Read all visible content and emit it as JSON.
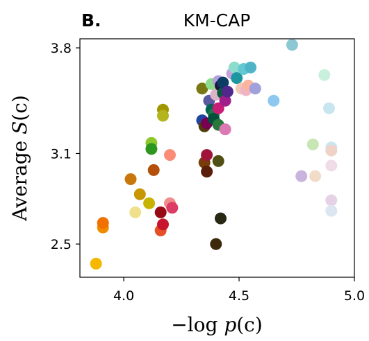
{
  "chart_data": {
    "type": "scatter",
    "panel_label": "B.",
    "title": "KM-CAP",
    "xlabel_prefix": "−log ",
    "xlabel_var": "p",
    "xlabel_suffix": "(c)",
    "ylabel_prefix": "Average ",
    "ylabel_var": "S",
    "ylabel_suffix": "(c)",
    "xlim": [
      3.81,
      5.0
    ],
    "ylim": [
      2.28,
      3.86
    ],
    "x_ticks": [
      4.0,
      4.5,
      5.0
    ],
    "x_tick_labels": [
      "4.0",
      "4.5",
      "5.0"
    ],
    "y_ticks": [
      2.5,
      3.1,
      3.8
    ],
    "y_tick_labels": [
      "2.5",
      "3.1",
      "3.8"
    ],
    "grid": false,
    "legend": "none",
    "points": [
      {
        "x": 3.88,
        "y": 2.37,
        "color": "#f5b700"
      },
      {
        "x": 3.91,
        "y": 2.61,
        "color": "#f08c00"
      },
      {
        "x": 3.91,
        "y": 2.64,
        "color": "#f07000"
      },
      {
        "x": 4.03,
        "y": 2.93,
        "color": "#c8780a"
      },
      {
        "x": 4.05,
        "y": 2.71,
        "color": "#f0e08c"
      },
      {
        "x": 4.07,
        "y": 2.83,
        "color": "#c89600"
      },
      {
        "x": 4.11,
        "y": 2.77,
        "color": "#c8b400"
      },
      {
        "x": 4.12,
        "y": 3.17,
        "color": "#8cc82d"
      },
      {
        "x": 4.12,
        "y": 3.13,
        "color": "#2d961e"
      },
      {
        "x": 4.13,
        "y": 2.99,
        "color": "#b4500a"
      },
      {
        "x": 4.16,
        "y": 2.71,
        "color": "#960a14"
      },
      {
        "x": 4.16,
        "y": 2.59,
        "color": "#e65028"
      },
      {
        "x": 4.17,
        "y": 2.63,
        "color": "#c8142d"
      },
      {
        "x": 4.17,
        "y": 3.39,
        "color": "#a09600"
      },
      {
        "x": 4.17,
        "y": 3.35,
        "color": "#b4b41e"
      },
      {
        "x": 4.2,
        "y": 3.09,
        "color": "#fa8c78"
      },
      {
        "x": 4.2,
        "y": 2.77,
        "color": "#f08c8c"
      },
      {
        "x": 4.21,
        "y": 2.74,
        "color": "#dc3c64"
      },
      {
        "x": 4.34,
        "y": 3.53,
        "color": "#787814"
      },
      {
        "x": 4.34,
        "y": 3.32,
        "color": "#1e46a0"
      },
      {
        "x": 4.35,
        "y": 3.04,
        "color": "#783c0a"
      },
      {
        "x": 4.35,
        "y": 3.28,
        "color": "#503c0a"
      },
      {
        "x": 4.36,
        "y": 3.09,
        "color": "#a0143c"
      },
      {
        "x": 4.36,
        "y": 2.98,
        "color": "#5a1e0a"
      },
      {
        "x": 4.36,
        "y": 3.3,
        "color": "#780050"
      },
      {
        "x": 4.37,
        "y": 3.45,
        "color": "#5a5aa0"
      },
      {
        "x": 4.38,
        "y": 3.56,
        "color": "#8cdc8c"
      },
      {
        "x": 4.38,
        "y": 3.39,
        "color": "#006450"
      },
      {
        "x": 4.39,
        "y": 3.36,
        "color": "#1e7846"
      },
      {
        "x": 4.39,
        "y": 3.33,
        "color": "#00503c"
      },
      {
        "x": 4.4,
        "y": 3.49,
        "color": "#dcb4c8"
      },
      {
        "x": 4.4,
        "y": 2.5,
        "color": "#3c280a"
      },
      {
        "x": 4.41,
        "y": 3.05,
        "color": "#505014"
      },
      {
        "x": 4.41,
        "y": 3.58,
        "color": "#b4a0dc"
      },
      {
        "x": 4.41,
        "y": 3.4,
        "color": "#c81e78"
      },
      {
        "x": 4.41,
        "y": 3.29,
        "color": "#28783c"
      },
      {
        "x": 4.42,
        "y": 3.55,
        "color": "#1e143c"
      },
      {
        "x": 4.42,
        "y": 2.67,
        "color": "#282814"
      },
      {
        "x": 4.43,
        "y": 3.5,
        "color": "#0a5a3c"
      },
      {
        "x": 4.43,
        "y": 3.57,
        "color": "#0a3c64"
      },
      {
        "x": 4.44,
        "y": 3.26,
        "color": "#dc78b4"
      },
      {
        "x": 4.44,
        "y": 3.45,
        "color": "#a01e8c"
      },
      {
        "x": 4.45,
        "y": 3.51,
        "color": "#50288c"
      },
      {
        "x": 4.47,
        "y": 3.63,
        "color": "#c8a0dc"
      },
      {
        "x": 4.48,
        "y": 3.67,
        "color": "#8cdccc"
      },
      {
        "x": 4.49,
        "y": 3.6,
        "color": "#1e96a0"
      },
      {
        "x": 4.51,
        "y": 3.53,
        "color": "#f0c8b4"
      },
      {
        "x": 4.52,
        "y": 3.66,
        "color": "#64c8d2"
      },
      {
        "x": 4.53,
        "y": 3.52,
        "color": "#f0b4c8"
      },
      {
        "x": 4.54,
        "y": 3.55,
        "color": "#fab4a0"
      },
      {
        "x": 4.55,
        "y": 3.67,
        "color": "#50b4c8"
      },
      {
        "x": 4.57,
        "y": 3.53,
        "color": "#a0a0dc"
      },
      {
        "x": 4.65,
        "y": 3.45,
        "color": "#8cc8f0"
      },
      {
        "x": 4.73,
        "y": 3.82,
        "color": "#8cc8d2"
      },
      {
        "x": 4.77,
        "y": 2.95,
        "color": "#c8b4dc"
      },
      {
        "x": 4.82,
        "y": 3.16,
        "color": "#c8e6b4"
      },
      {
        "x": 4.83,
        "y": 2.95,
        "color": "#f0dcc8"
      },
      {
        "x": 4.87,
        "y": 3.62,
        "color": "#c8f0dc"
      },
      {
        "x": 4.89,
        "y": 3.4,
        "color": "#c8e6f0"
      },
      {
        "x": 4.9,
        "y": 3.14,
        "color": "#c8e6f0"
      },
      {
        "x": 4.9,
        "y": 3.12,
        "color": "#f0d2c8"
      },
      {
        "x": 4.9,
        "y": 3.02,
        "color": "#f0dce6"
      },
      {
        "x": 4.9,
        "y": 2.79,
        "color": "#e6d2e6"
      },
      {
        "x": 4.9,
        "y": 2.72,
        "color": "#dce6f0"
      }
    ]
  }
}
